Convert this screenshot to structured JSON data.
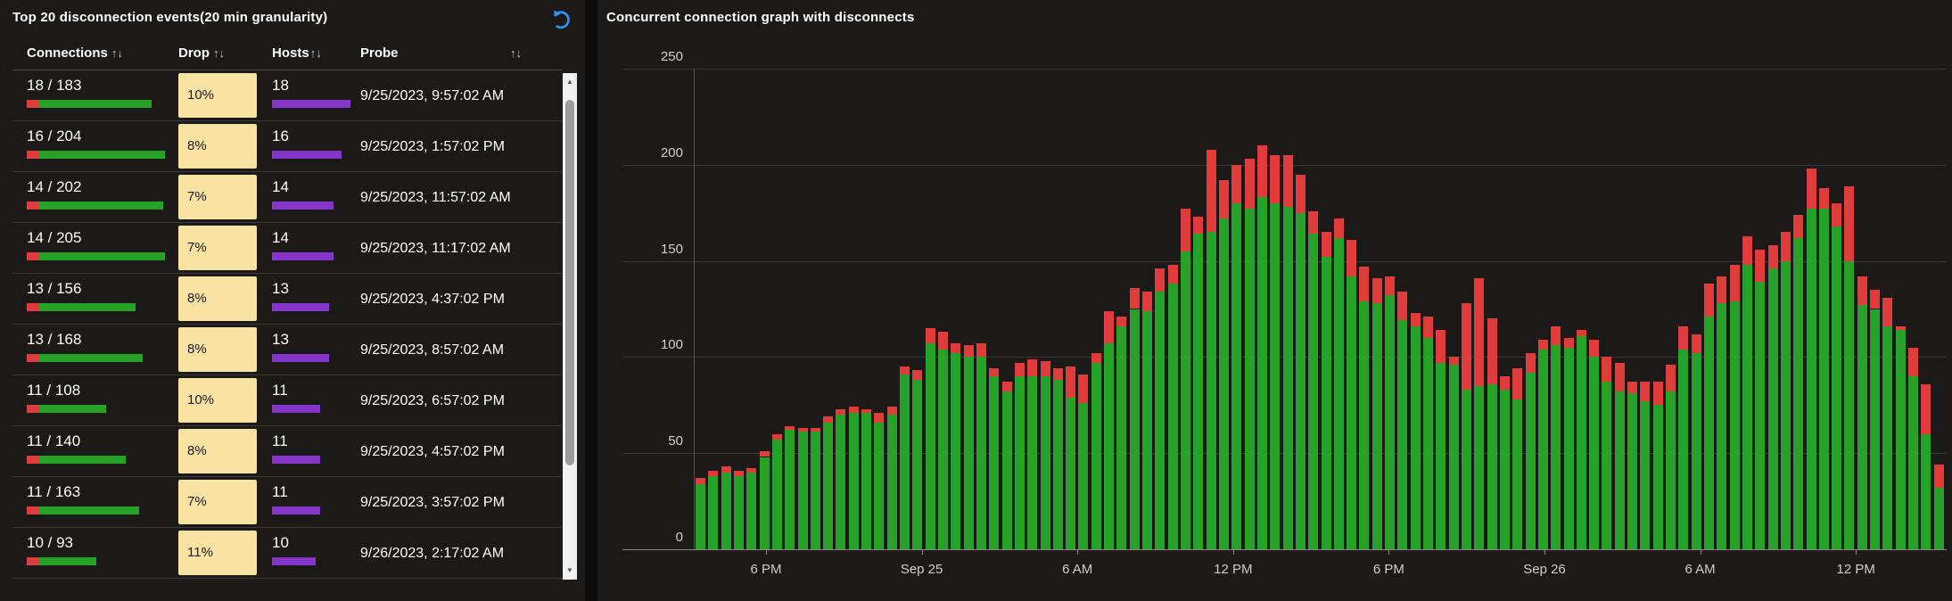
{
  "colors": {
    "tile_bg": "#1b1a19",
    "seam": "#0d0c0c",
    "text": "#ffffff",
    "muted_text": "#c8c6c4",
    "separator": "#3b3a39",
    "drop_cell_bg": "#f8e3a3",
    "drop_cell_text": "#1b1a19",
    "hosts_bar": "#8536c9",
    "connections_green": "#26a326",
    "connections_red": "#e03c3c",
    "chart_green": "#26a228",
    "chart_red": "#e03c3c",
    "gridline": "#3a3938",
    "axis_line": "#8a8988",
    "axis_text": "#d2d0ce",
    "undo_icon_blue": "#2e96f0",
    "scrollbar_track": "#f1f1f1",
    "scrollbar_thumb": "#9b9b9b"
  },
  "table_panel": {
    "title": "Top 20 disconnection events(20 min granularity)",
    "sort_glyph": "↑↓",
    "columns": [
      "Connections",
      "Drop",
      "Hosts",
      "Probe"
    ],
    "rows": [
      {
        "connections": "18 / 183",
        "total": 183,
        "drop": "10%",
        "hosts": "18",
        "probe": "9/25/2023, 9:57:02 AM"
      },
      {
        "connections": "16 / 204",
        "total": 204,
        "drop": "8%",
        "hosts": "16",
        "probe": "9/25/2023, 1:57:02 PM"
      },
      {
        "connections": "14 / 202",
        "total": 202,
        "drop": "7%",
        "hosts": "14",
        "probe": "9/25/2023, 11:57:02 AM"
      },
      {
        "connections": "14 / 205",
        "total": 205,
        "drop": "7%",
        "hosts": "14",
        "probe": "9/25/2023, 11:17:02 AM"
      },
      {
        "connections": "13 / 156",
        "total": 156,
        "drop": "8%",
        "hosts": "13",
        "probe": "9/25/2023, 4:37:02 PM"
      },
      {
        "connections": "13 / 168",
        "total": 168,
        "drop": "8%",
        "hosts": "13",
        "probe": "9/25/2023, 8:57:02 AM"
      },
      {
        "connections": "11 / 108",
        "total": 108,
        "drop": "10%",
        "hosts": "11",
        "probe": "9/25/2023, 6:57:02 PM"
      },
      {
        "connections": "11 / 140",
        "total": 140,
        "drop": "8%",
        "hosts": "11",
        "probe": "9/25/2023, 4:57:02 PM"
      },
      {
        "connections": "11 / 163",
        "total": 163,
        "drop": "7%",
        "hosts": "11",
        "probe": "9/25/2023, 3:57:02 PM"
      },
      {
        "connections": "10 / 93",
        "total": 93,
        "drop": "11%",
        "hosts": "10",
        "probe": "9/26/2023, 2:17:02 AM"
      }
    ]
  },
  "chart_panel": {
    "title": "Concurrent connection graph with disconnects",
    "chart_data": {
      "type": "bar",
      "stacked": true,
      "title": "Concurrent connection graph with disconnects",
      "xlabel": "",
      "ylabel": "",
      "ylim": [
        0,
        250
      ],
      "y_ticks": [
        0,
        50,
        100,
        150,
        200,
        250
      ],
      "x_tick_labels": [
        "6 PM",
        "Sep 25",
        "6 AM",
        "12 PM",
        "6 PM",
        "Sep 26",
        "6 AM",
        "12 PM"
      ],
      "grid": true,
      "legend": false,
      "series": [
        {
          "name": "concurrent-connections",
          "color": "#26a228",
          "values": [
            34,
            38,
            40,
            38,
            40,
            48,
            57,
            62,
            61,
            61,
            66,
            70,
            71,
            71,
            66,
            70,
            91,
            88,
            107,
            104,
            102,
            100,
            100,
            90,
            82,
            90,
            90,
            90,
            88,
            79,
            76,
            97,
            107,
            116,
            125,
            124,
            134,
            138,
            155,
            164,
            165,
            172,
            180,
            177,
            183,
            180,
            178,
            175,
            164,
            152,
            162,
            142,
            129,
            128,
            132,
            119,
            116,
            110,
            97,
            96,
            83,
            85,
            86,
            83,
            78,
            92,
            104,
            106,
            105,
            111,
            100,
            87,
            82,
            81,
            77,
            75,
            82,
            104,
            102,
            121,
            128,
            129,
            148,
            139,
            146,
            150,
            162,
            177,
            177,
            168,
            150,
            127,
            125,
            116,
            114,
            90,
            60,
            32
          ]
        },
        {
          "name": "disconnects",
          "color": "#e03c3c",
          "values": [
            3,
            3,
            3,
            3,
            2,
            3,
            3,
            2,
            2,
            2,
            3,
            3,
            3,
            2,
            5,
            4,
            4,
            5,
            8,
            9,
            5,
            6,
            7,
            4,
            5,
            7,
            9,
            8,
            6,
            16,
            15,
            5,
            17,
            5,
            11,
            10,
            12,
            10,
            22,
            9,
            43,
            20,
            20,
            26,
            27,
            25,
            27,
            20,
            12,
            13,
            10,
            19,
            18,
            13,
            10,
            15,
            7,
            11,
            17,
            4,
            45,
            56,
            34,
            7,
            16,
            10,
            5,
            10,
            5,
            3,
            9,
            13,
            15,
            6,
            10,
            12,
            14,
            12,
            10,
            17,
            14,
            19,
            15,
            17,
            12,
            15,
            12,
            21,
            11,
            12,
            39,
            15,
            10,
            15,
            2,
            15,
            26,
            12
          ]
        }
      ]
    }
  }
}
